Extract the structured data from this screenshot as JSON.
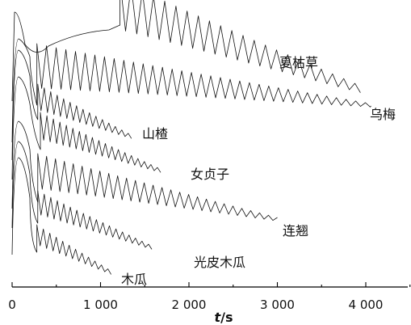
{
  "chart_data": {
    "type": "line",
    "title": "",
    "xlabel_var": "t",
    "xlabel_unit": "/s",
    "ylabel": "",
    "xlim": [
      0,
      4500
    ],
    "xticks": [
      0,
      1000,
      2000,
      3000,
      4000
    ],
    "xtick_labels": [
      "0",
      "1 000",
      "2 000",
      "3 000",
      "4 000"
    ],
    "grid": false,
    "series": [
      {
        "name": "夏枯草",
        "curve_type": "oscillatory",
        "onset_s": 1220,
        "end_s": 3940
      },
      {
        "name": "乌梅",
        "curve_type": "oscillatory",
        "onset_s": 280,
        "end_s": 4050
      },
      {
        "name": "山楂",
        "curve_type": "oscillatory",
        "onset_s": 290,
        "end_s": 1350
      },
      {
        "name": "女贞子",
        "curve_type": "oscillatory",
        "onset_s": 320,
        "end_s": 1680
      },
      {
        "name": "连翘",
        "curve_type": "oscillatory",
        "onset_s": 290,
        "end_s": 3000
      },
      {
        "name": "光皮木瓜",
        "curve_type": "oscillatory",
        "onset_s": 290,
        "end_s": 1580
      },
      {
        "name": "木瓜",
        "curve_type": "oscillatory",
        "onset_s": 280,
        "end_s": 1120
      }
    ]
  }
}
